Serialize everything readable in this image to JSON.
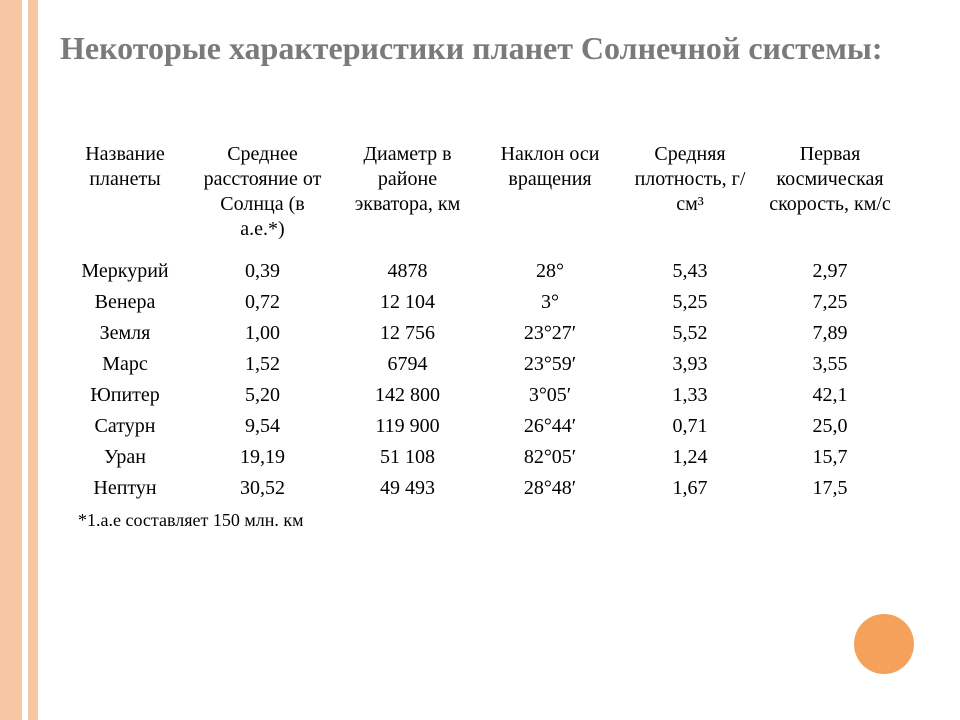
{
  "title": "Некоторые характеристики планет Солнечной системы:",
  "table": {
    "columns": [
      "Название планеты",
      "Среднее расстояние от Солнца (в а.е.*)",
      "Диаметр в районе экватора, км",
      "Наклон оси вращения",
      "Средняя плотность, г/см³",
      "Первая космическая скорость, км/с"
    ],
    "column_widths": [
      "130px",
      "145px",
      "145px",
      "140px",
      "140px",
      "140px"
    ],
    "rows": [
      [
        "Меркурий",
        "0,39",
        "4878",
        "28°",
        "5,43",
        "2,97"
      ],
      [
        "Венера",
        "0,72",
        "12 104",
        "3°",
        "5,25",
        "7,25"
      ],
      [
        "Земля",
        "1,00",
        "12 756",
        "23°27′",
        "5,52",
        "7,89"
      ],
      [
        "Марс",
        "1,52",
        "6794",
        "23°59′",
        "3,93",
        "3,55"
      ],
      [
        "Юпитер",
        "5,20",
        "142 800",
        "3°05′",
        "1,33",
        "42,1"
      ],
      [
        "Сатурн",
        "9,54",
        "119 900",
        "26°44′",
        "0,71",
        "25,0"
      ],
      [
        "Уран",
        "19,19",
        "51 108",
        "82°05′",
        "1,24",
        "15,7"
      ],
      [
        "Нептун",
        "30,52",
        "49 493",
        "28°48′",
        "1,67",
        "17,5"
      ]
    ]
  },
  "footnote": "*1.а.е составляет 150 млн. км",
  "colors": {
    "stripe": "#f7c6a3",
    "circle": "#f5a15b",
    "title": "#7a7a7a",
    "text": "#000000",
    "background": "#ffffff"
  },
  "typography": {
    "title_fontsize": 32,
    "title_weight": "bold",
    "header_fontsize": 20,
    "cell_fontsize": 20,
    "footnote_fontsize": 18,
    "title_font": "Georgia",
    "body_font": "Times New Roman"
  }
}
